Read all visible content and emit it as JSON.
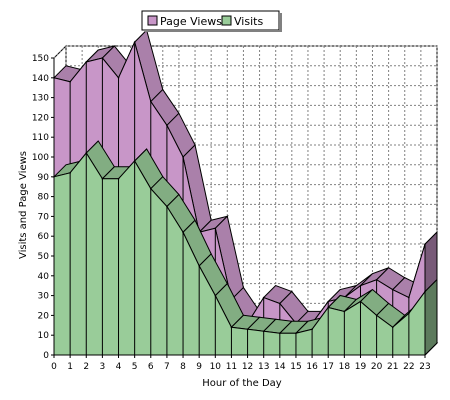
{
  "chart_data": {
    "type": "area",
    "xlabel": "Hour of the Day",
    "ylabel": "Visits and Page Views",
    "x": [
      0,
      1,
      2,
      3,
      4,
      5,
      6,
      7,
      8,
      9,
      10,
      11,
      12,
      13,
      14,
      15,
      16,
      17,
      18,
      19,
      20,
      21,
      22,
      23
    ],
    "ylim": [
      0,
      150
    ],
    "yticks": [
      0,
      10,
      20,
      30,
      40,
      50,
      60,
      70,
      80,
      90,
      100,
      110,
      120,
      130,
      140,
      150
    ],
    "grid": true,
    "legend_position": "top-center",
    "series": [
      {
        "name": "Page Views",
        "color": "#c896c8",
        "values": [
          140,
          138,
          148,
          150,
          140,
          158,
          128,
          116,
          100,
          62,
          64,
          28,
          16,
          29,
          26,
          16,
          16,
          27,
          29,
          35,
          38,
          33,
          29,
          56
        ]
      },
      {
        "name": "Visits",
        "color": "#99cc99",
        "values": [
          90,
          92,
          102,
          89,
          89,
          98,
          84,
          75,
          62,
          45,
          30,
          14,
          13,
          12,
          11,
          11,
          13,
          24,
          22,
          27,
          20,
          14,
          21,
          32
        ]
      }
    ]
  }
}
